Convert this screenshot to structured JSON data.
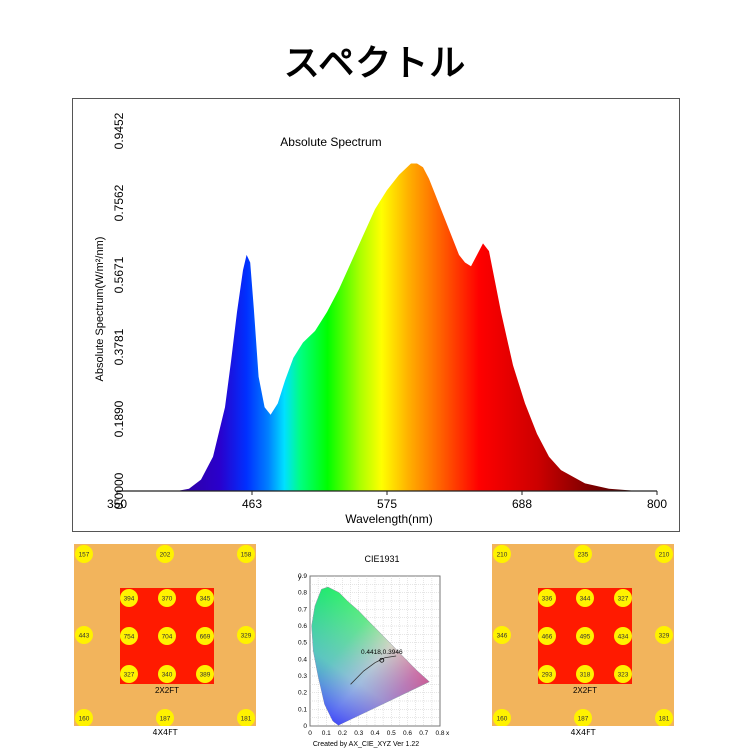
{
  "page_title": "スペクトル",
  "chart_data": [
    {
      "type": "area",
      "title": "Absolute Spectrum",
      "xlabel": "Wavelength(nm)",
      "ylabel": "Absolute Spectrum(W/m²/nm)",
      "xlim": [
        350,
        800
      ],
      "ylim": [
        0,
        0.9452
      ],
      "xticks": [
        "350",
        "463",
        "575",
        "688",
        "800"
      ],
      "yticks": [
        "0.0000",
        "0.1890",
        "0.3781",
        "0.5671",
        "0.7562",
        "0.9452"
      ],
      "fill": "visible-spectrum gradient",
      "grid": false,
      "x": [
        350,
        400,
        410,
        420,
        430,
        440,
        445,
        450,
        455,
        458,
        461,
        464,
        468,
        473,
        478,
        484,
        490,
        497,
        505,
        515,
        525,
        535,
        545,
        555,
        565,
        575,
        585,
        595,
        600,
        605,
        610,
        615,
        620,
        625,
        630,
        635,
        640,
        645,
        650,
        655,
        660,
        665,
        670,
        675,
        680,
        690,
        700,
        710,
        720,
        740,
        760,
        780,
        800
      ],
      "y": [
        0,
        0,
        0.006,
        0.03,
        0.09,
        0.22,
        0.34,
        0.47,
        0.58,
        0.62,
        0.6,
        0.48,
        0.3,
        0.22,
        0.2,
        0.23,
        0.29,
        0.35,
        0.39,
        0.42,
        0.47,
        0.53,
        0.6,
        0.67,
        0.74,
        0.79,
        0.83,
        0.86,
        0.86,
        0.85,
        0.82,
        0.78,
        0.74,
        0.7,
        0.66,
        0.62,
        0.6,
        0.59,
        0.62,
        0.65,
        0.63,
        0.55,
        0.47,
        0.4,
        0.33,
        0.23,
        0.15,
        0.09,
        0.055,
        0.02,
        0.006,
        0.001,
        0
      ]
    },
    {
      "type": "scatter",
      "title": "CIE1931",
      "x_axis_label": "x",
      "y_axis_label": "y",
      "xticks": [
        "0",
        "0.1",
        "0.2",
        "0.3",
        "0.4",
        "0.5",
        "0.6",
        "0.7",
        "0.8"
      ],
      "yticks": [
        "0",
        "0.1",
        "0.2",
        "0.3",
        "0.4",
        "0.5",
        "0.6",
        "0.7",
        "0.8",
        "0.9"
      ],
      "xlim": [
        0,
        0.8
      ],
      "ylim": [
        0,
        0.9
      ],
      "point": {
        "x": 0.4418,
        "y": 0.3946,
        "label": "0.4418,0.3946"
      },
      "footer": "Created by AX_CIE_XYZ Ver 1.22"
    }
  ],
  "ppfd_maps": [
    {
      "outer_label": "4X4FT",
      "inner_label": "2X2FT",
      "outer_values": [
        "157",
        "202",
        "158",
        "443",
        "329",
        "160",
        "187",
        "181"
      ],
      "inner_values": [
        "394",
        "370",
        "345",
        "754",
        "704",
        "669",
        "327",
        "340",
        "389"
      ]
    },
    {
      "outer_label": "4X4FT",
      "inner_label": "2X2FT",
      "outer_values": [
        "210",
        "235",
        "210",
        "346",
        "329",
        "160",
        "187",
        "181"
      ],
      "inner_values": [
        "336",
        "344",
        "327",
        "466",
        "495",
        "434",
        "293",
        "318",
        "323"
      ]
    }
  ],
  "colors": {
    "ppfd_outer": "#f2b45c",
    "ppfd_inner": "#ff1a00",
    "ppfd_dot": "#fff200"
  }
}
